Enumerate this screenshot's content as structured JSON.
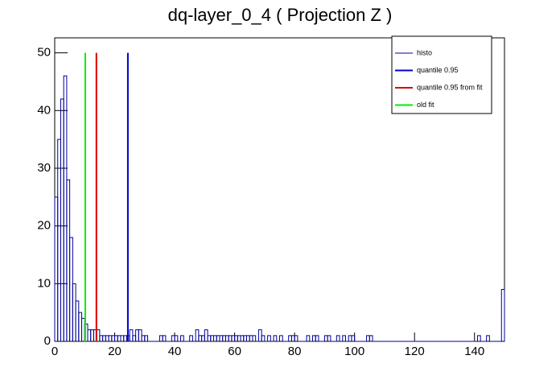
{
  "chart_data": {
    "type": "histogram",
    "title": "dq-layer_0_4 ( Projection Z )",
    "bins": [
      0,
      1,
      2,
      3,
      4,
      5,
      6,
      7,
      8,
      9,
      10,
      11,
      12,
      13,
      14,
      15,
      16,
      17,
      18,
      19,
      20,
      21,
      22,
      23,
      24,
      25,
      26,
      27,
      28,
      29,
      30,
      31,
      32,
      33,
      34,
      35,
      36,
      37,
      38,
      39,
      40,
      41,
      42,
      43,
      44,
      45,
      46,
      47,
      48,
      49,
      50,
      51,
      52,
      53,
      54,
      55,
      56,
      57,
      58,
      59,
      60,
      61,
      62,
      63,
      64,
      65,
      66,
      67,
      68,
      69,
      70,
      71,
      72,
      73,
      74,
      75,
      76,
      77,
      78,
      79,
      80,
      81,
      82,
      83,
      84,
      85,
      86,
      87,
      88,
      89,
      90,
      91,
      92,
      93,
      94,
      95,
      96,
      97,
      98,
      99,
      100,
      101,
      102,
      103,
      104,
      105,
      106,
      107,
      108,
      109,
      110,
      111,
      112,
      113,
      114,
      115,
      116,
      117,
      118,
      119,
      120,
      121,
      122,
      123,
      124,
      125,
      126,
      127,
      128,
      129,
      130,
      131,
      132,
      133,
      134,
      135,
      136,
      137,
      138,
      139,
      140,
      141,
      142,
      143,
      144,
      145,
      146,
      147,
      148,
      149,
      150
    ],
    "series": [
      {
        "name": "histo",
        "color": "#000099",
        "values": [
          25,
          35,
          42,
          46,
          28,
          18,
          10,
          7,
          5,
          4,
          3,
          2,
          2,
          2,
          2,
          1,
          1,
          1,
          1,
          1,
          1,
          1,
          1,
          1,
          1,
          2,
          1,
          2,
          2,
          1,
          1,
          0,
          0,
          0,
          0,
          1,
          1,
          0,
          0,
          1,
          1,
          0,
          1,
          0,
          0,
          1,
          0,
          2,
          1,
          1,
          2,
          1,
          1,
          1,
          1,
          1,
          1,
          1,
          1,
          1,
          1,
          1,
          1,
          1,
          1,
          1,
          1,
          0,
          2,
          1,
          0,
          1,
          0,
          1,
          0,
          1,
          0,
          0,
          1,
          1,
          1,
          0,
          0,
          0,
          1,
          0,
          1,
          1,
          0,
          0,
          1,
          1,
          0,
          0,
          1,
          0,
          1,
          0,
          1,
          1,
          0,
          0,
          0,
          0,
          1,
          1,
          0,
          0,
          0,
          0,
          0,
          0,
          0,
          0,
          0,
          0,
          0,
          0,
          0,
          0,
          0,
          0,
          0,
          0,
          0,
          0,
          0,
          0,
          0,
          0,
          0,
          0,
          0,
          0,
          0,
          0,
          0,
          0,
          0,
          0,
          0,
          1,
          0,
          0,
          1,
          0,
          0,
          0,
          0,
          9
        ]
      }
    ],
    "markers": [
      {
        "name": "quantile 0.95",
        "color": "#0000cc",
        "x": 24.4,
        "y": 50
      },
      {
        "name": "quantile 0.95 from fit",
        "color": "#dd0000",
        "x": 13.9,
        "y": 50
      },
      {
        "name": "old fit",
        "color": "#00ee00",
        "x": 10.2,
        "y": 50
      }
    ],
    "xlim": [
      0,
      150
    ],
    "xticks": [
      0,
      20,
      40,
      60,
      80,
      100,
      120,
      140
    ],
    "ylim": [
      0,
      52.6
    ],
    "yticks": [
      0,
      10,
      20,
      30,
      40,
      50
    ]
  }
}
